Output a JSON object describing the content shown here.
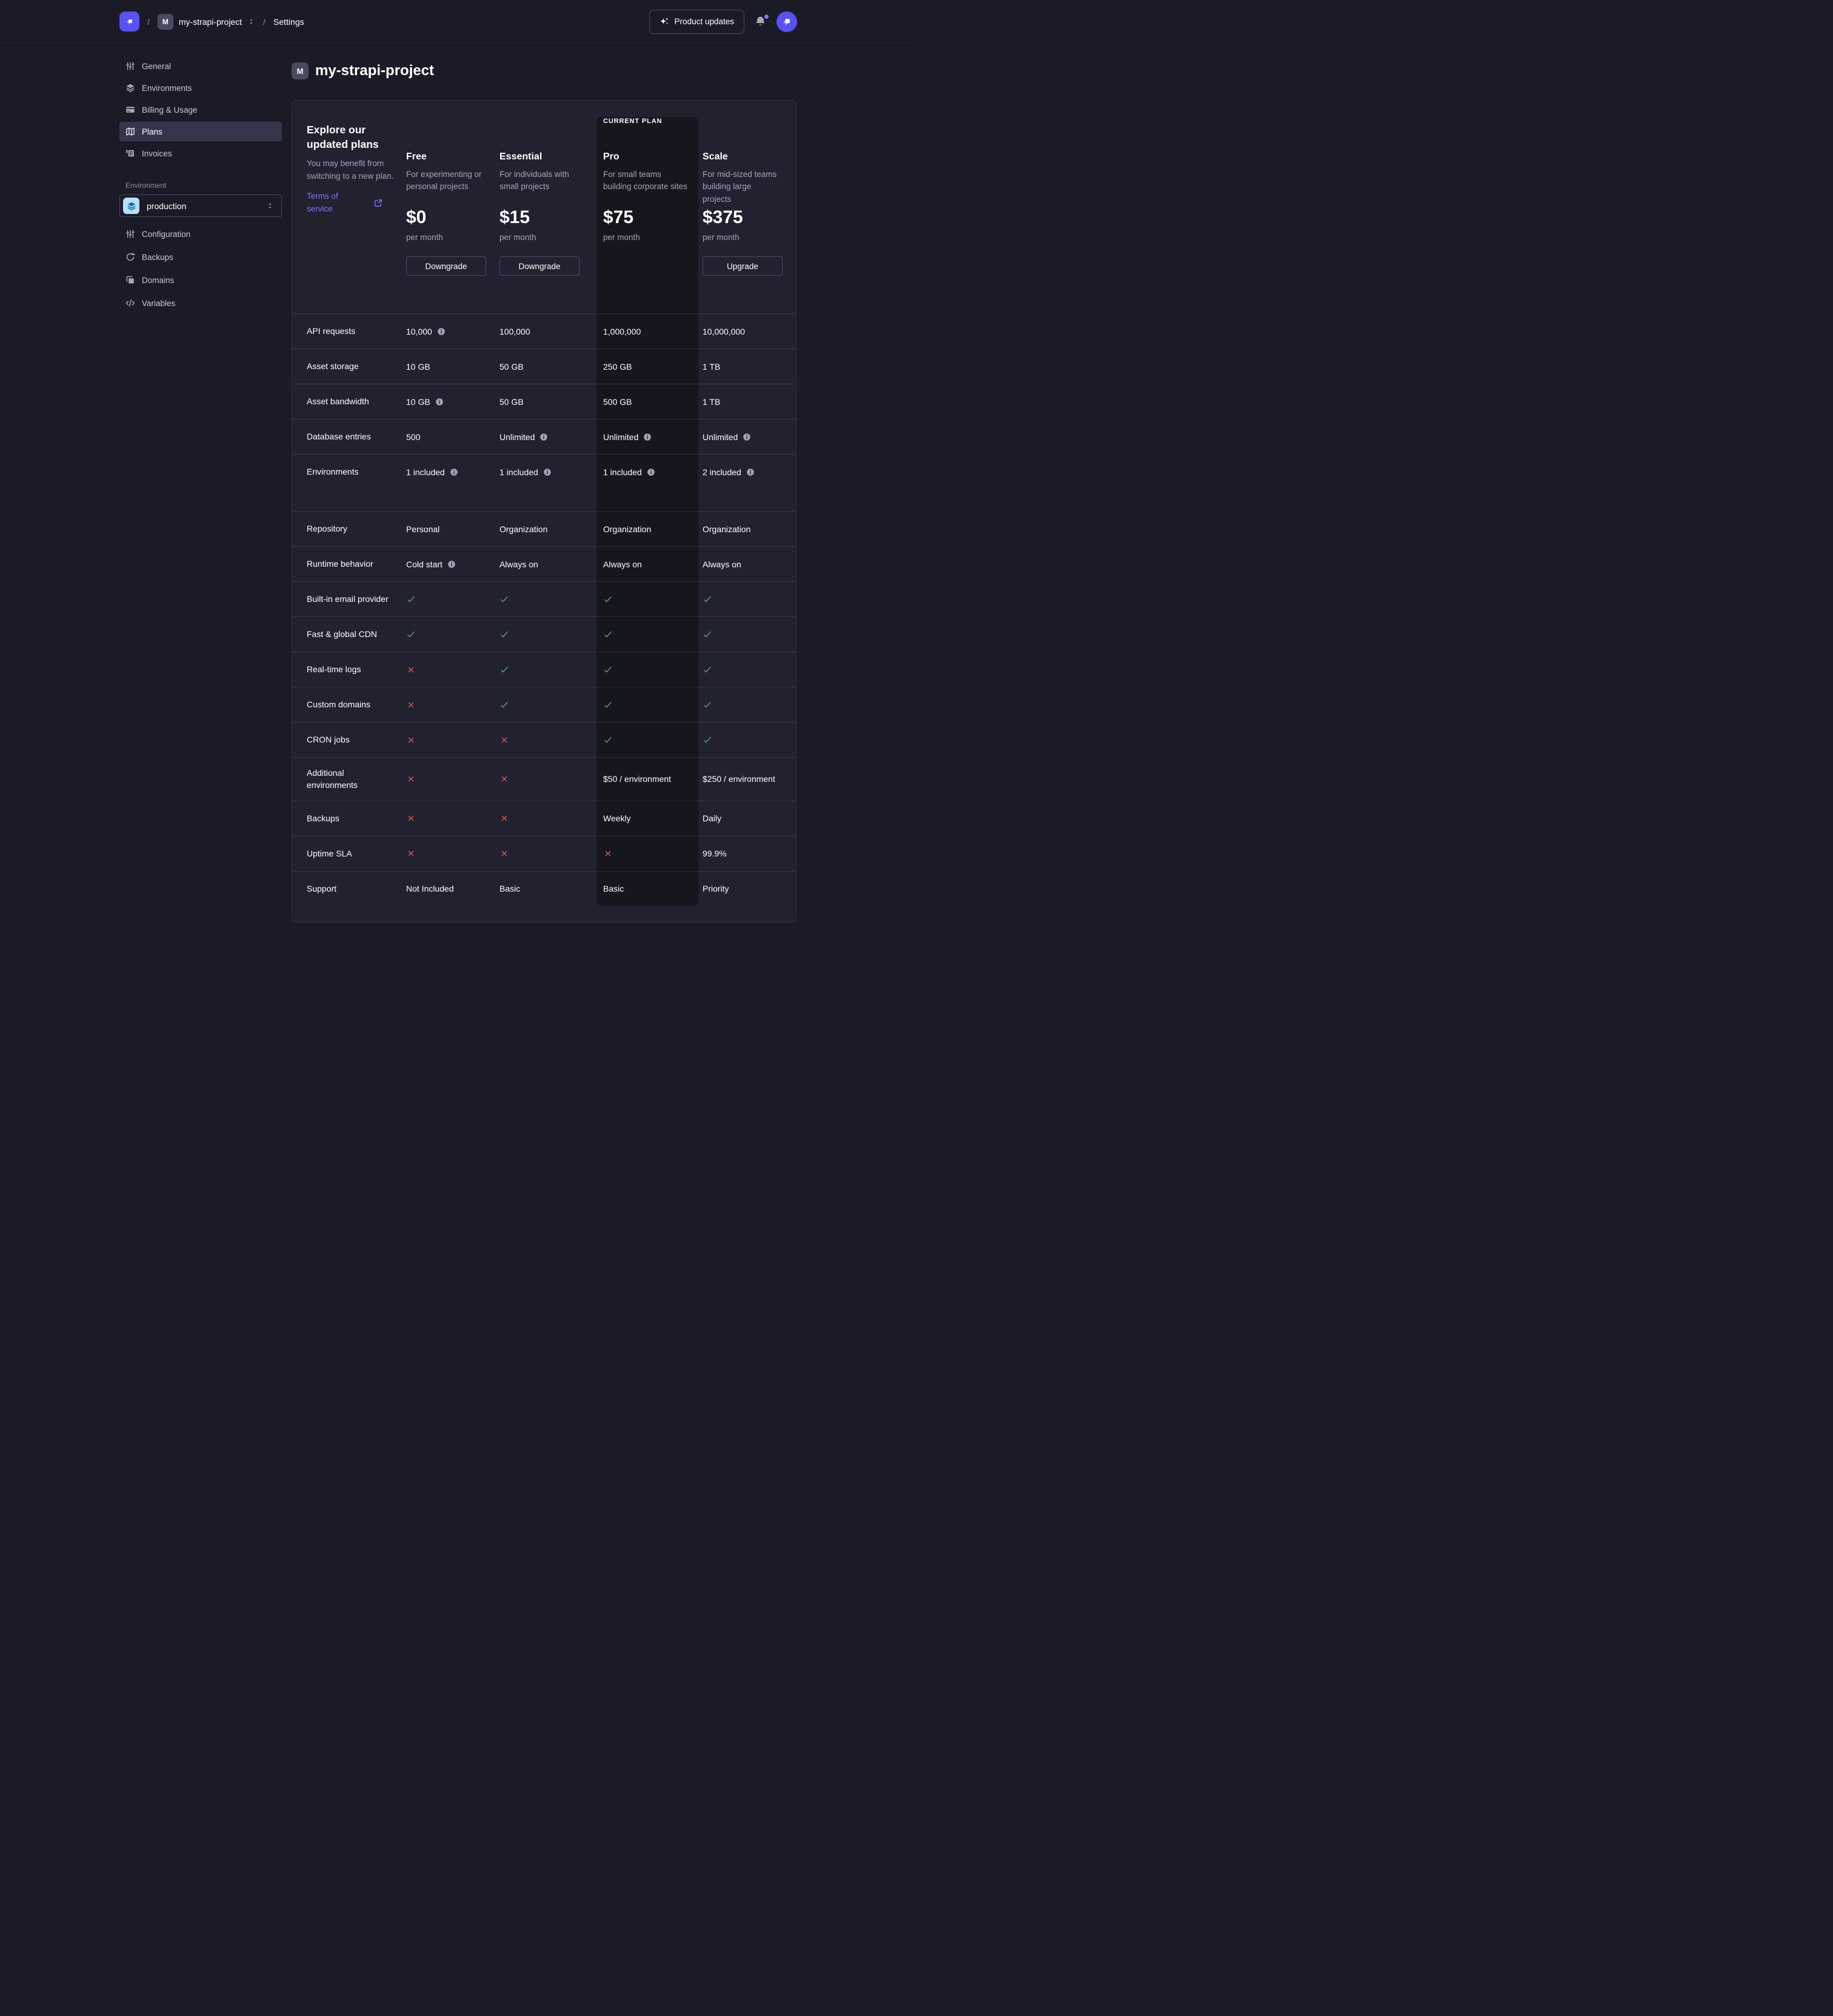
{
  "theme": {
    "accent": "#5852f3",
    "link": "#7b79ff",
    "check": "#5db176",
    "cross": "#ee5e52",
    "env_chip_bg": "#b8dffa",
    "env_chip_fg": "#1268a8",
    "current_plan_column_bg": "#16161e"
  },
  "header": {
    "logo_icon": "strapi-logo-icon",
    "breadcrumb": {
      "separator": "/",
      "project_initial": "M",
      "project": "my-strapi-project",
      "switcher_icon": "chevron-updown-icon",
      "section": "Settings"
    },
    "product_updates": {
      "label": "Product updates",
      "icon": "sparkles-icon"
    },
    "notifications_icon": "bell-icon",
    "avatar_icon": "strapi-logo-icon"
  },
  "sidebar": {
    "project_items": [
      {
        "label": "General",
        "icon": "sliders-icon",
        "active": false
      },
      {
        "label": "Environments",
        "icon": "layers-icon",
        "active": false
      },
      {
        "label": "Billing & Usage",
        "icon": "credit-card-icon",
        "active": false
      },
      {
        "label": "Plans",
        "icon": "map-icon",
        "active": true
      },
      {
        "label": "Invoices",
        "icon": "invoice-icon",
        "active": false
      }
    ],
    "environment_label": "Environment",
    "environment_select": {
      "value": "production",
      "icon": "layers-icon",
      "chevron_icon": "chevron-updown-icon"
    },
    "environment_items": [
      {
        "label": "Configuration",
        "icon": "sliders-icon"
      },
      {
        "label": "Backups",
        "icon": "refresh-icon"
      },
      {
        "label": "Domains",
        "icon": "copy-icon"
      },
      {
        "label": "Variables",
        "icon": "code-icon"
      }
    ]
  },
  "main": {
    "project_initial": "M",
    "title": "my-strapi-project"
  },
  "plans_card": {
    "intro": {
      "heading": "Explore our updated plans",
      "subheading": "You may benefit from switching to a new plan.",
      "link_label": "Terms of service",
      "link_icon": "external-link-icon"
    },
    "current_plan_label": "CURRENT PLAN",
    "period_label": "per month",
    "plans": [
      {
        "name": "Free",
        "description": "For experimenting or personal projects",
        "price": "$0",
        "action": "Downgrade",
        "current": false
      },
      {
        "name": "Essential",
        "description": "For individuals with small projects",
        "price": "$15",
        "action": "Downgrade",
        "current": false
      },
      {
        "name": "Pro",
        "description": "For small teams building corporate sites",
        "price": "$75",
        "action": null,
        "current": true
      },
      {
        "name": "Scale",
        "description": "For mid-sized teams building large projects",
        "price": "$375",
        "action": "Upgrade",
        "current": false
      }
    ],
    "features": [
      {
        "label": "API requests",
        "cells": [
          {
            "t": "text",
            "v": "10,000",
            "info": true
          },
          {
            "t": "text",
            "v": "100,000"
          },
          {
            "t": "text",
            "v": "1,000,000"
          },
          {
            "t": "text",
            "v": "10,000,000"
          }
        ]
      },
      {
        "label": "Asset storage",
        "cells": [
          {
            "t": "text",
            "v": "10 GB"
          },
          {
            "t": "text",
            "v": "50 GB"
          },
          {
            "t": "text",
            "v": "250 GB"
          },
          {
            "t": "text",
            "v": "1 TB"
          }
        ]
      },
      {
        "label": "Asset bandwidth",
        "cells": [
          {
            "t": "text",
            "v": "10 GB",
            "info": true
          },
          {
            "t": "text",
            "v": "50 GB"
          },
          {
            "t": "text",
            "v": "500 GB"
          },
          {
            "t": "text",
            "v": "1 TB"
          }
        ]
      },
      {
        "label": "Database entries",
        "cells": [
          {
            "t": "text",
            "v": "500"
          },
          {
            "t": "text",
            "v": "Unlimited",
            "info": true
          },
          {
            "t": "text",
            "v": "Unlimited",
            "info": true
          },
          {
            "t": "text",
            "v": "Unlimited",
            "info": true
          }
        ]
      },
      {
        "label": "Environments",
        "cells": [
          {
            "t": "text",
            "v": "1 included",
            "info": true
          },
          {
            "t": "text",
            "v": "1 included",
            "info": true
          },
          {
            "t": "text",
            "v": "1 included",
            "info": true
          },
          {
            "t": "text",
            "v": "2 included",
            "info": true
          }
        ]
      },
      {
        "label": "Repository",
        "gap_before": true,
        "cells": [
          {
            "t": "text",
            "v": "Personal"
          },
          {
            "t": "text",
            "v": "Organization"
          },
          {
            "t": "text",
            "v": "Organization"
          },
          {
            "t": "text",
            "v": "Organization"
          }
        ]
      },
      {
        "label": "Runtime behavior",
        "cells": [
          {
            "t": "text",
            "v": "Cold start",
            "info": true
          },
          {
            "t": "text",
            "v": "Always on"
          },
          {
            "t": "text",
            "v": "Always on"
          },
          {
            "t": "text",
            "v": "Always on"
          }
        ]
      },
      {
        "label": "Built-in email provider",
        "cells": [
          {
            "t": "check"
          },
          {
            "t": "check"
          },
          {
            "t": "check"
          },
          {
            "t": "check"
          }
        ]
      },
      {
        "label": "Fast & global CDN",
        "cells": [
          {
            "t": "check"
          },
          {
            "t": "check"
          },
          {
            "t": "check"
          },
          {
            "t": "check"
          }
        ]
      },
      {
        "label": "Real-time logs",
        "cells": [
          {
            "t": "cross"
          },
          {
            "t": "check"
          },
          {
            "t": "check"
          },
          {
            "t": "check"
          }
        ]
      },
      {
        "label": "Custom domains",
        "cells": [
          {
            "t": "cross"
          },
          {
            "t": "check"
          },
          {
            "t": "check"
          },
          {
            "t": "check"
          }
        ]
      },
      {
        "label": "CRON jobs",
        "cells": [
          {
            "t": "cross"
          },
          {
            "t": "cross"
          },
          {
            "t": "check"
          },
          {
            "t": "check"
          }
        ]
      },
      {
        "label": "Additional environments",
        "cells": [
          {
            "t": "cross"
          },
          {
            "t": "cross"
          },
          {
            "t": "text",
            "v": "$50 / environment"
          },
          {
            "t": "text",
            "v": "$250 / environment"
          }
        ]
      },
      {
        "label": "Backups",
        "cells": [
          {
            "t": "cross"
          },
          {
            "t": "cross"
          },
          {
            "t": "text",
            "v": "Weekly"
          },
          {
            "t": "text",
            "v": "Daily"
          }
        ]
      },
      {
        "label": "Uptime SLA",
        "cells": [
          {
            "t": "cross"
          },
          {
            "t": "cross"
          },
          {
            "t": "cross"
          },
          {
            "t": "text",
            "v": "99.9%"
          }
        ]
      },
      {
        "label": "Support",
        "cells": [
          {
            "t": "text",
            "v": "Not Included"
          },
          {
            "t": "text",
            "v": "Basic"
          },
          {
            "t": "text",
            "v": "Basic"
          },
          {
            "t": "text",
            "v": "Priority"
          }
        ]
      }
    ]
  }
}
